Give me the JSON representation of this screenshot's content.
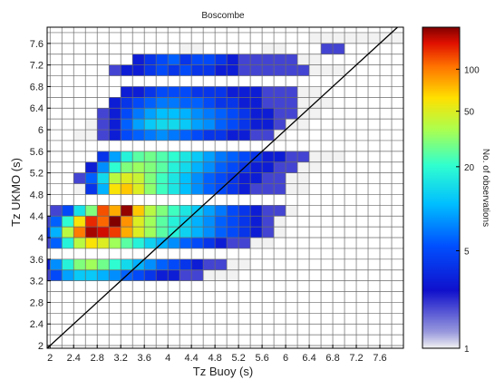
{
  "chart_data": {
    "type": "heatmap",
    "title": "Boscombe",
    "xlabel": "Tz Buoy (s)",
    "ylabel": "Tz UKMO (s)",
    "xlim": [
      1.95,
      8.0
    ],
    "ylim": [
      1.95,
      7.9
    ],
    "x_ticks": [
      "2",
      "2.4",
      "2.8",
      "3.2",
      "3.6",
      "4",
      "4.4",
      "4.8",
      "5.2",
      "5.6",
      "6",
      "6.4",
      "6.8",
      "7.2",
      "7.6"
    ],
    "y_ticks": [
      "2",
      "2.4",
      "2.8",
      "3.2",
      "3.6",
      "4",
      "4.4",
      "4.8",
      "5.2",
      "5.6",
      "6",
      "6.4",
      "6.8",
      "7.2",
      "7.6"
    ],
    "bin_width_x": 0.2,
    "bin_width_y": 0.2,
    "grid": true,
    "reference_line": "y = x",
    "colorbar": {
      "label": "No. of observations",
      "scale": "log",
      "range": [
        1,
        200
      ],
      "ticks": [
        "1",
        "5",
        "20",
        "50",
        "100"
      ]
    },
    "rows": [
      {
        "y": 7.8,
        "x0": 2.4,
        "counts": [
          0,
          0,
          0,
          0,
          0,
          0,
          0,
          0,
          0,
          0,
          0,
          0,
          0,
          0,
          0,
          0,
          0,
          0,
          0,
          0,
          0,
          0,
          0,
          0,
          0,
          0,
          0,
          0,
          0,
          0
        ]
      },
      {
        "y": 7.6,
        "x0": 6.4,
        "counts": [
          1,
          1,
          1,
          1,
          1,
          1,
          1,
          1,
          1,
          1
        ]
      },
      {
        "y": 7.4,
        "x0": 4.2,
        "counts": [
          1,
          1,
          0,
          0,
          0,
          0,
          0,
          1,
          1,
          0,
          0,
          0,
          2,
          2
        ]
      },
      {
        "y": 7.2,
        "x0": 3.4,
        "counts": [
          3,
          4,
          5,
          6,
          4,
          5,
          5,
          4,
          3,
          2,
          2,
          2,
          2,
          2,
          1,
          1
        ]
      },
      {
        "y": 7.0,
        "x0": 3.0,
        "counts": [
          2,
          3,
          3,
          4,
          5,
          4,
          5,
          4,
          4,
          3,
          3,
          2,
          2,
          2,
          2,
          2,
          2,
          1,
          1,
          1
        ]
      },
      {
        "y": 6.6,
        "x0": 3.2,
        "counts": [
          3,
          3,
          4,
          5,
          5,
          5,
          4,
          4,
          4,
          3,
          3,
          3,
          2,
          2,
          2,
          1,
          1
        ]
      },
      {
        "y": 6.4,
        "x0": 3.0,
        "counts": [
          3,
          4,
          5,
          6,
          7,
          7,
          6,
          6,
          5,
          4,
          4,
          3,
          3,
          2,
          2,
          2,
          1,
          1,
          1
        ]
      },
      {
        "y": 6.2,
        "x0": 2.8,
        "counts": [
          2,
          3,
          5,
          7,
          9,
          11,
          11,
          10,
          8,
          7,
          6,
          5,
          4,
          3,
          3,
          2,
          2,
          1,
          1
        ]
      },
      {
        "y": 6.0,
        "x0": 2.6,
        "counts": [
          1,
          2,
          3,
          6,
          9,
          12,
          14,
          14,
          12,
          9,
          8,
          6,
          5,
          4,
          3,
          3,
          2,
          1,
          1
        ]
      },
      {
        "y": 5.8,
        "x0": 2.4,
        "counts": [
          1,
          1,
          2,
          3,
          5,
          6,
          7,
          8,
          7,
          6,
          5,
          4,
          4,
          3,
          3,
          2,
          2,
          1
        ]
      },
      {
        "y": 5.4,
        "x0": 2.8,
        "counts": [
          4,
          9,
          18,
          25,
          28,
          24,
          20,
          16,
          12,
          9,
          7,
          6,
          5,
          4,
          3,
          3,
          2,
          2,
          1,
          1,
          1
        ]
      },
      {
        "y": 5.2,
        "x0": 2.6,
        "counts": [
          3,
          8,
          20,
          30,
          34,
          30,
          25,
          18,
          14,
          10,
          8,
          6,
          5,
          4,
          3,
          3,
          2,
          2,
          1,
          1
        ]
      },
      {
        "y": 5.0,
        "x0": 2.4,
        "counts": [
          2,
          6,
          14,
          40,
          50,
          44,
          30,
          22,
          16,
          11,
          8,
          6,
          5,
          4,
          3,
          3,
          2,
          2,
          1,
          1
        ]
      },
      {
        "y": 4.8,
        "x0": 2.4,
        "counts": [
          1,
          4,
          10,
          60,
          70,
          50,
          32,
          22,
          16,
          11,
          8,
          6,
          5,
          4,
          3,
          2,
          2,
          2,
          1,
          1
        ]
      },
      {
        "y": 4.4,
        "x0": 1.8,
        "counts": [
          1,
          2,
          5,
          15,
          30,
          120,
          80,
          190,
          70,
          40,
          30,
          22,
          16,
          12,
          9,
          7,
          5,
          4,
          3,
          2,
          2,
          1
        ]
      },
      {
        "y": 4.2,
        "x0": 1.8,
        "counts": [
          2,
          6,
          20,
          60,
          140,
          110,
          200,
          90,
          50,
          35,
          25,
          18,
          13,
          10,
          8,
          6,
          5,
          4,
          3,
          2,
          1
        ]
      },
      {
        "y": 4.0,
        "x0": 1.8,
        "counts": [
          4,
          10,
          40,
          100,
          180,
          160,
          130,
          80,
          50,
          35,
          25,
          18,
          13,
          10,
          8,
          6,
          5,
          4,
          3,
          2,
          1
        ]
      },
      {
        "y": 3.8,
        "x0": 1.8,
        "counts": [
          2,
          6,
          18,
          40,
          60,
          50,
          35,
          25,
          18,
          13,
          10,
          8,
          6,
          5,
          4,
          3,
          2,
          2,
          1,
          1
        ]
      },
      {
        "y": 3.4,
        "x0": 1.8,
        "counts": [
          3,
          8,
          18,
          30,
          35,
          28,
          20,
          14,
          10,
          8,
          6,
          5,
          4,
          3,
          2,
          2,
          1,
          1
        ]
      },
      {
        "y": 3.2,
        "x0": 1.8,
        "counts": [
          2,
          5,
          9,
          12,
          12,
          10,
          8,
          6,
          5,
          4,
          3,
          3,
          2,
          2,
          1,
          1,
          1
        ]
      }
    ]
  }
}
